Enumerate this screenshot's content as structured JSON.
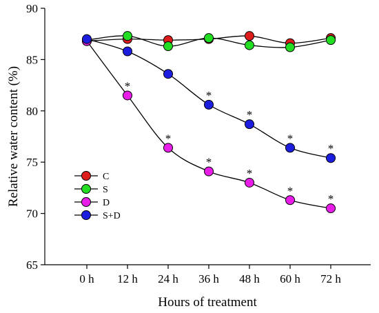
{
  "chart_data": {
    "type": "line",
    "title": "",
    "xlabel": "Hours of treatment",
    "ylabel": "Relative water content (%)",
    "categories": [
      "0 h",
      "12 h",
      "24 h",
      "36 h",
      "48 h",
      "60 h",
      "72 h"
    ],
    "y_ticks": [
      "65",
      "70",
      "75",
      "80",
      "85",
      "90"
    ],
    "ylim": [
      65,
      90
    ],
    "grid": false,
    "legend_position": "bottom-left",
    "significance_marker": "*",
    "series": [
      {
        "name": "C",
        "color": "#dd1c1c",
        "values": [
          86.8,
          87.0,
          86.9,
          87.0,
          87.3,
          86.6,
          87.1
        ],
        "significant": [
          false,
          false,
          false,
          false,
          false,
          false,
          false
        ]
      },
      {
        "name": "S",
        "color": "#22dd22",
        "values": [
          86.9,
          87.3,
          86.3,
          87.1,
          86.4,
          86.2,
          86.9
        ],
        "significant": [
          false,
          false,
          false,
          false,
          false,
          false,
          false
        ]
      },
      {
        "name": "D",
        "color": "#e81ee8",
        "values": [
          86.8,
          81.5,
          76.4,
          74.1,
          73.0,
          71.3,
          70.5
        ],
        "significant": [
          false,
          true,
          true,
          true,
          true,
          true,
          true
        ]
      },
      {
        "name": "S+D",
        "color": "#1d1de0",
        "values": [
          87.0,
          85.8,
          83.6,
          80.6,
          78.7,
          76.4,
          75.4
        ],
        "significant": [
          false,
          false,
          false,
          true,
          true,
          true,
          true
        ]
      }
    ]
  }
}
